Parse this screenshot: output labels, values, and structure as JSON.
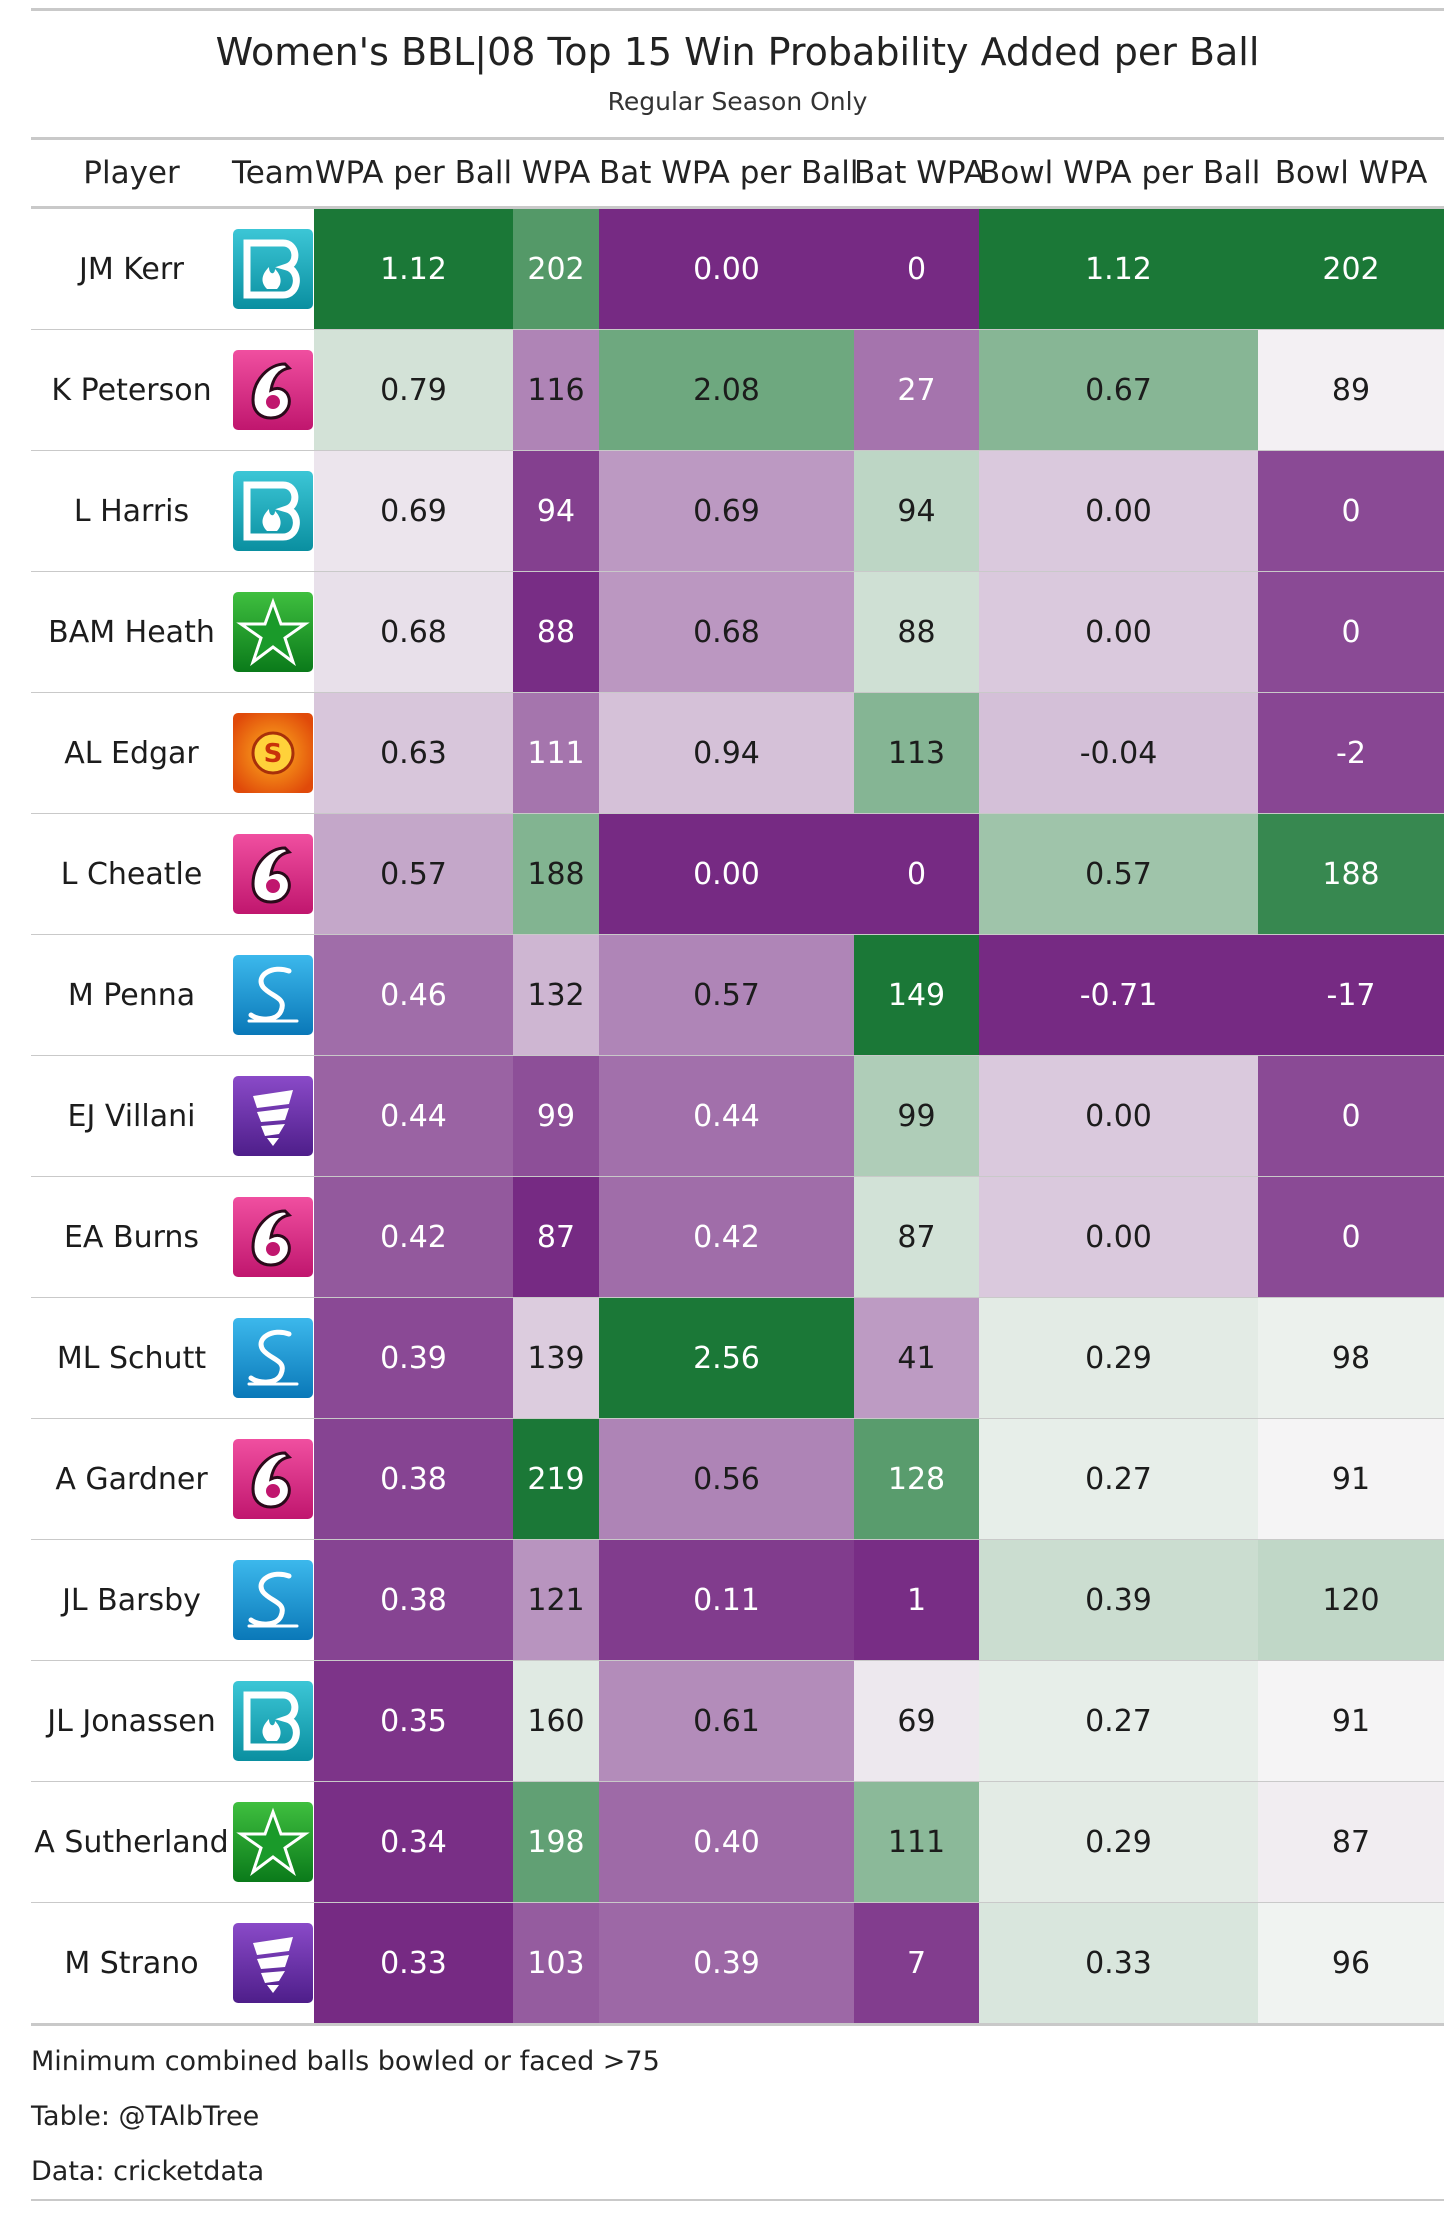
{
  "chart_data": {
    "type": "table",
    "title": "Women's BBL|08 Top 15 Win Probability Added per Ball",
    "subtitle": "Regular Season Only",
    "columns": [
      "Player",
      "Team",
      "WPA per Ball",
      "WPA",
      "Bat WPA per Ball",
      "Bat WPA",
      "Bowl WPA per Ball",
      "Bowl WPA"
    ],
    "rows": [
      {
        "player": "JM Kerr",
        "team_icon": "brisbane-heat-logo",
        "values": [
          "1.12",
          "202",
          "0.00",
          "0",
          "1.12",
          "202"
        ]
      },
      {
        "player": "K Peterson",
        "team_icon": "sydney-sixers-logo",
        "values": [
          "0.79",
          "116",
          "2.08",
          "27",
          "0.67",
          "89"
        ]
      },
      {
        "player": "L Harris",
        "team_icon": "brisbane-heat-logo",
        "values": [
          "0.69",
          "94",
          "0.69",
          "94",
          "0.00",
          "0"
        ]
      },
      {
        "player": "BAM Heath",
        "team_icon": "melbourne-stars-logo",
        "values": [
          "0.68",
          "88",
          "0.68",
          "88",
          "0.00",
          "0"
        ]
      },
      {
        "player": "AL Edgar",
        "team_icon": "perth-scorchers-logo",
        "values": [
          "0.63",
          "111",
          "0.94",
          "113",
          "-0.04",
          "-2"
        ]
      },
      {
        "player": "L Cheatle",
        "team_icon": "sydney-sixers-logo",
        "values": [
          "0.57",
          "188",
          "0.00",
          "0",
          "0.57",
          "188"
        ]
      },
      {
        "player": "M Penna",
        "team_icon": "adelaide-strikers-logo",
        "values": [
          "0.46",
          "132",
          "0.57",
          "149",
          "-0.71",
          "-17"
        ]
      },
      {
        "player": "EJ Villani",
        "team_icon": "hobart-hurricanes-logo",
        "values": [
          "0.44",
          "99",
          "0.44",
          "99",
          "0.00",
          "0"
        ]
      },
      {
        "player": "EA Burns",
        "team_icon": "sydney-sixers-logo",
        "values": [
          "0.42",
          "87",
          "0.42",
          "87",
          "0.00",
          "0"
        ]
      },
      {
        "player": "ML Schutt",
        "team_icon": "adelaide-strikers-logo",
        "values": [
          "0.39",
          "139",
          "2.56",
          "41",
          "0.29",
          "98"
        ]
      },
      {
        "player": "A Gardner",
        "team_icon": "sydney-sixers-logo",
        "values": [
          "0.38",
          "219",
          "0.56",
          "128",
          "0.27",
          "91"
        ]
      },
      {
        "player": "JL Barsby",
        "team_icon": "adelaide-strikers-logo",
        "values": [
          "0.38",
          "121",
          "0.11",
          "1",
          "0.39",
          "120"
        ]
      },
      {
        "player": "JL Jonassen",
        "team_icon": "brisbane-heat-logo",
        "values": [
          "0.35",
          "160",
          "0.61",
          "69",
          "0.27",
          "91"
        ]
      },
      {
        "player": "A Sutherland",
        "team_icon": "melbourne-stars-logo",
        "values": [
          "0.34",
          "198",
          "0.40",
          "111",
          "0.29",
          "87"
        ]
      },
      {
        "player": "M Strano",
        "team_icon": "hobart-hurricanes-logo",
        "values": [
          "0.33",
          "103",
          "0.39",
          "7",
          "0.33",
          "96"
        ]
      }
    ],
    "color_scale": {
      "low": "#762a83",
      "mid": "#f7f7f7",
      "high": "#1b7837",
      "per_column": true
    },
    "notes": [
      "Minimum combined balls bowled or faced >75",
      "Table: @TAlbTree",
      "Data: cricketdata"
    ]
  }
}
